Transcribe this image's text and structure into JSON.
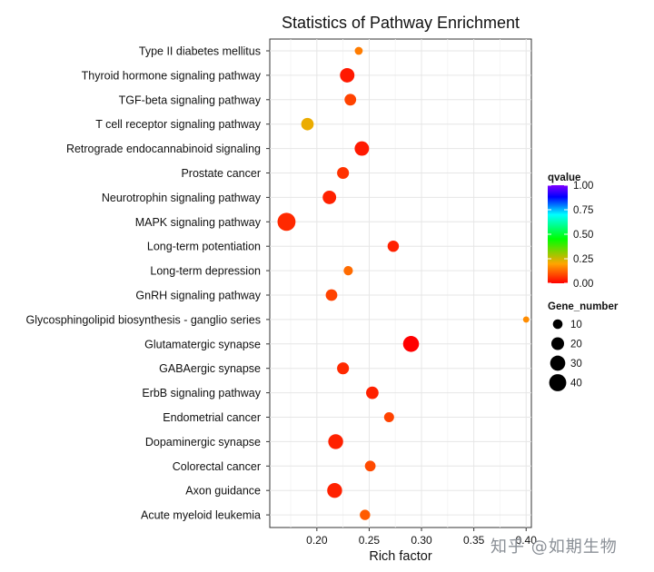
{
  "chart_data": {
    "type": "scatter",
    "title": "Statistics of Pathway Enrichment",
    "xlabel": "Rich factor",
    "ylabel": "",
    "xlim": [
      0.155,
      0.405
    ],
    "x_ticks": [
      0.2,
      0.25,
      0.3,
      0.35,
      0.4
    ],
    "x_tick_labels": [
      "0.20",
      "0.25",
      "0.30",
      "0.35",
      "0.40"
    ],
    "grid": true,
    "categories": [
      "Type II diabetes mellitus",
      "Thyroid hormone signaling pathway",
      "TGF-beta signaling pathway",
      "T cell receptor signaling pathway",
      "Retrograde endocannabinoid signaling",
      "Prostate cancer",
      "Neurotrophin signaling pathway",
      "MAPK signaling pathway",
      "Long-term potentiation",
      "Long-term depression",
      "GnRH signaling pathway",
      "Glycosphingolipid biosynthesis - ganglio series",
      "Glutamatergic synapse",
      "GABAergic synapse",
      "ErbB signaling pathway",
      "Endometrial cancer",
      "Dopaminergic synapse",
      "Colorectal cancer",
      "Axon guidance",
      "Acute myeloid leukemia"
    ],
    "points": [
      {
        "pathway": "Type II diabetes mellitus",
        "rich_factor": 0.24,
        "gene_number": 6,
        "qvalue": 0.15
      },
      {
        "pathway": "Thyroid hormone signaling pathway",
        "rich_factor": 0.229,
        "gene_number": 27,
        "qvalue": 0.03
      },
      {
        "pathway": "TGF-beta signaling pathway",
        "rich_factor": 0.232,
        "gene_number": 16,
        "qvalue": 0.08
      },
      {
        "pathway": "T cell receptor signaling pathway",
        "rich_factor": 0.191,
        "gene_number": 19,
        "qvalue": 0.22
      },
      {
        "pathway": "Retrograde endocannabinoid signaling",
        "rich_factor": 0.243,
        "gene_number": 27,
        "qvalue": 0.03
      },
      {
        "pathway": "Prostate cancer",
        "rich_factor": 0.225,
        "gene_number": 17,
        "qvalue": 0.06
      },
      {
        "pathway": "Neurotrophin signaling pathway",
        "rich_factor": 0.212,
        "gene_number": 23,
        "qvalue": 0.04
      },
      {
        "pathway": "MAPK signaling pathway",
        "rich_factor": 0.171,
        "gene_number": 45,
        "qvalue": 0.05
      },
      {
        "pathway": "Long-term potentiation",
        "rich_factor": 0.273,
        "gene_number": 15,
        "qvalue": 0.04
      },
      {
        "pathway": "Long-term depression",
        "rich_factor": 0.23,
        "gene_number": 9,
        "qvalue": 0.13
      },
      {
        "pathway": "GnRH signaling pathway",
        "rich_factor": 0.214,
        "gene_number": 16,
        "qvalue": 0.08
      },
      {
        "pathway": "Glycosphingolipid biosynthesis - ganglio series",
        "rich_factor": 0.4,
        "gene_number": 3,
        "qvalue": 0.17
      },
      {
        "pathway": "Glutamatergic synapse",
        "rich_factor": 0.29,
        "gene_number": 34,
        "qvalue": 0.0
      },
      {
        "pathway": "GABAergic synapse",
        "rich_factor": 0.225,
        "gene_number": 17,
        "qvalue": 0.05
      },
      {
        "pathway": "ErbB signaling pathway",
        "rich_factor": 0.253,
        "gene_number": 19,
        "qvalue": 0.04
      },
      {
        "pathway": "Endometrial cancer",
        "rich_factor": 0.269,
        "gene_number": 11,
        "qvalue": 0.08
      },
      {
        "pathway": "Dopaminergic synapse",
        "rich_factor": 0.218,
        "gene_number": 29,
        "qvalue": 0.04
      },
      {
        "pathway": "Colorectal cancer",
        "rich_factor": 0.251,
        "gene_number": 13,
        "qvalue": 0.09
      },
      {
        "pathway": "Axon guidance",
        "rich_factor": 0.217,
        "gene_number": 29,
        "qvalue": 0.04
      },
      {
        "pathway": "Acute myeloid leukemia",
        "rich_factor": 0.246,
        "gene_number": 12,
        "qvalue": 0.11
      }
    ],
    "legend_color": {
      "title": "qvalue",
      "range": [
        0.0,
        1.0
      ],
      "ticks": [
        1.0,
        0.75,
        0.5,
        0.25,
        0.0
      ],
      "tick_labels": [
        "1.00",
        "0.75",
        "0.50",
        "0.25",
        "0.00"
      ],
      "colors_low_to_high": [
        "#ff0000",
        "#ffa500",
        "#00ff00",
        "#00ffff",
        "#0000ff",
        "#8000ff"
      ],
      "placement": "right"
    },
    "legend_size": {
      "title": "Gene_number",
      "values": [
        10,
        20,
        30,
        40
      ],
      "labels": [
        "10",
        "20",
        "30",
        "40"
      ],
      "placement": "right"
    }
  },
  "watermark": "知乎 @如期生物"
}
